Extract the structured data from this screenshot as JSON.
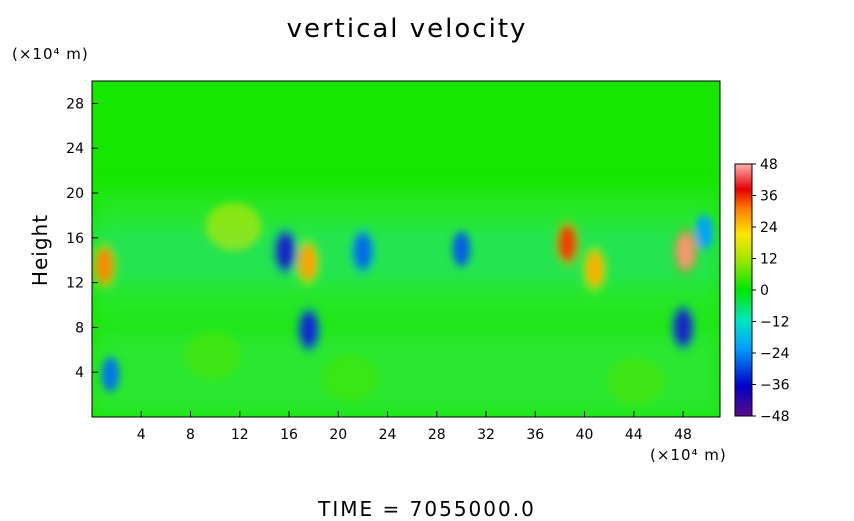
{
  "chart_data": {
    "type": "heatmap",
    "title": "vertical velocity",
    "xlabel": "",
    "ylabel": "Height",
    "x_units": "(×10⁴ m)",
    "y_units": "(×10⁴ m)",
    "xlim": [
      0,
      51
    ],
    "ylim": [
      0,
      30
    ],
    "x_ticks": [
      4,
      8,
      12,
      16,
      20,
      24,
      28,
      32,
      36,
      40,
      44,
      48
    ],
    "y_ticks": [
      4,
      8,
      12,
      16,
      20,
      24,
      28
    ],
    "colorbar": {
      "ticks": [
        48,
        36,
        24,
        12,
        0,
        -12,
        -24,
        -36,
        -48
      ],
      "range": [
        -48,
        48
      ]
    },
    "features": [
      {
        "x": 48.2,
        "y": 14.8,
        "value": 48
      },
      {
        "x": 38.6,
        "y": 15.5,
        "value": 40
      },
      {
        "x": 1.0,
        "y": 13.5,
        "value": 34
      },
      {
        "x": 17.5,
        "y": 13.8,
        "value": 32
      },
      {
        "x": 40.8,
        "y": 13.2,
        "value": 30
      },
      {
        "x": 11.5,
        "y": 17.0,
        "value": 18
      },
      {
        "x": 15.7,
        "y": 14.8,
        "value": -40
      },
      {
        "x": 17.6,
        "y": 7.8,
        "value": -38
      },
      {
        "x": 48.0,
        "y": 8.0,
        "value": -40
      },
      {
        "x": 22.0,
        "y": 14.8,
        "value": -30
      },
      {
        "x": 30.0,
        "y": 15.0,
        "value": -28
      },
      {
        "x": 1.5,
        "y": 3.8,
        "value": -26
      },
      {
        "x": 49.7,
        "y": 16.5,
        "value": -22
      },
      {
        "x": 9.8,
        "y": 5.5,
        "value": 6
      },
      {
        "x": 21.0,
        "y": 3.5,
        "value": 5
      },
      {
        "x": 44.2,
        "y": 3.2,
        "value": 6
      }
    ]
  },
  "time_label": "TIME  =  7055000.0"
}
